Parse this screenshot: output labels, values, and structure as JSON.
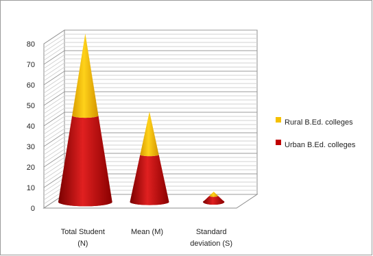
{
  "chart_data": {
    "type": "bar",
    "style": "3d-cone-stacked",
    "categories": [
      [
        "Total Student",
        "(N)"
      ],
      [
        "Mean (M)"
      ],
      [
        "Standard",
        "deviation (S)"
      ]
    ],
    "series": [
      {
        "name": "Urban B.Ed. colleges",
        "values": [
          42,
          23,
          3
        ],
        "color": "#c00000"
      },
      {
        "name": "Rural B.Ed. colleges",
        "values": [
          40,
          21,
          2
        ],
        "color": "#f5c000"
      }
    ],
    "stack_order": [
      "Urban B.Ed. colleges",
      "Rural B.Ed. colleges"
    ],
    "y_ticks": [
      "0",
      "10",
      "20",
      "30",
      "40",
      "50",
      "60",
      "70",
      "80"
    ],
    "ylim": [
      0,
      80
    ],
    "grid": true,
    "legend_position": "right",
    "legend_order": [
      "Rural B.Ed. colleges",
      "Urban B.Ed. colleges"
    ],
    "title": "",
    "xlabel": "",
    "ylabel": ""
  }
}
